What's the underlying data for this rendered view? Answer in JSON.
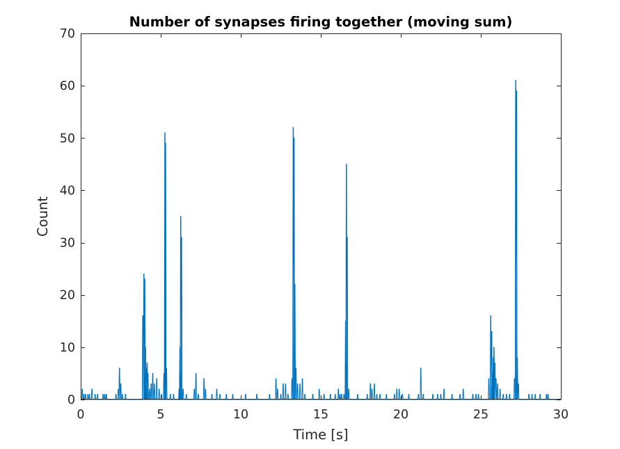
{
  "chart_data": {
    "type": "line",
    "title": "Number of synapses firing together (moving sum)",
    "xlabel": "Time [s]",
    "ylabel": "Count",
    "xlim": [
      0,
      30
    ],
    "ylim": [
      0,
      70
    ],
    "xticks": [
      0,
      5,
      10,
      15,
      20,
      25,
      30
    ],
    "yticks": [
      0,
      10,
      20,
      30,
      40,
      50,
      60,
      70
    ],
    "grid": false,
    "box": true,
    "line_color": "#0072BD",
    "series": [
      {
        "points": [
          [
            0.1,
            2
          ],
          [
            0.2,
            1
          ],
          [
            0.3,
            1
          ],
          [
            0.45,
            1
          ],
          [
            0.55,
            1
          ],
          [
            0.7,
            2
          ],
          [
            0.9,
            1
          ],
          [
            1.05,
            1
          ],
          [
            1.4,
            1
          ],
          [
            1.5,
            1
          ],
          [
            1.6,
            1
          ],
          [
            2.2,
            1
          ],
          [
            2.35,
            2
          ],
          [
            2.42,
            6
          ],
          [
            2.5,
            3
          ],
          [
            2.6,
            1
          ],
          [
            2.8,
            1
          ],
          [
            3.88,
            16
          ],
          [
            3.95,
            24
          ],
          [
            4.0,
            23
          ],
          [
            4.05,
            10
          ],
          [
            4.1,
            6
          ],
          [
            4.15,
            7
          ],
          [
            4.2,
            5
          ],
          [
            4.3,
            2
          ],
          [
            4.4,
            3
          ],
          [
            4.5,
            5
          ],
          [
            4.6,
            3
          ],
          [
            4.75,
            4
          ],
          [
            4.9,
            2
          ],
          [
            5.05,
            1
          ],
          [
            5.2,
            5
          ],
          [
            5.26,
            51
          ],
          [
            5.3,
            49
          ],
          [
            5.36,
            6
          ],
          [
            5.6,
            1
          ],
          [
            5.8,
            1
          ],
          [
            6.15,
            2
          ],
          [
            6.2,
            10
          ],
          [
            6.25,
            35
          ],
          [
            6.3,
            31
          ],
          [
            6.4,
            2
          ],
          [
            6.6,
            1
          ],
          [
            7.1,
            2
          ],
          [
            7.2,
            5
          ],
          [
            7.35,
            1
          ],
          [
            7.7,
            4
          ],
          [
            7.8,
            2
          ],
          [
            8.2,
            1
          ],
          [
            8.5,
            2
          ],
          [
            8.7,
            1
          ],
          [
            9.1,
            1
          ],
          [
            9.5,
            1
          ],
          [
            10.3,
            1
          ],
          [
            11.0,
            1
          ],
          [
            11.8,
            1
          ],
          [
            12.2,
            4
          ],
          [
            12.3,
            2
          ],
          [
            12.5,
            1
          ],
          [
            12.65,
            3
          ],
          [
            12.8,
            3
          ],
          [
            12.95,
            1
          ],
          [
            13.2,
            4
          ],
          [
            13.28,
            52
          ],
          [
            13.33,
            50
          ],
          [
            13.38,
            22
          ],
          [
            13.45,
            6
          ],
          [
            13.55,
            3
          ],
          [
            13.7,
            3
          ],
          [
            13.85,
            4
          ],
          [
            14.0,
            1
          ],
          [
            14.5,
            1
          ],
          [
            14.9,
            2
          ],
          [
            15.2,
            1
          ],
          [
            15.6,
            1
          ],
          [
            15.9,
            1
          ],
          [
            16.1,
            2
          ],
          [
            16.2,
            1
          ],
          [
            16.3,
            1
          ],
          [
            16.45,
            1
          ],
          [
            16.55,
            15
          ],
          [
            16.6,
            45
          ],
          [
            16.65,
            31
          ],
          [
            16.75,
            2
          ],
          [
            17.3,
            1
          ],
          [
            17.9,
            1
          ],
          [
            18.1,
            3
          ],
          [
            18.2,
            2
          ],
          [
            18.35,
            3
          ],
          [
            18.5,
            1
          ],
          [
            18.7,
            1
          ],
          [
            19.1,
            1
          ],
          [
            19.6,
            1
          ],
          [
            19.75,
            2
          ],
          [
            19.9,
            2
          ],
          [
            20.1,
            1
          ],
          [
            20.5,
            1
          ],
          [
            21.1,
            1
          ],
          [
            21.25,
            6
          ],
          [
            21.4,
            1
          ],
          [
            22.0,
            1
          ],
          [
            22.3,
            1
          ],
          [
            22.5,
            1
          ],
          [
            22.7,
            2
          ],
          [
            23.2,
            1
          ],
          [
            23.7,
            1
          ],
          [
            23.9,
            2
          ],
          [
            24.5,
            1
          ],
          [
            24.7,
            1
          ],
          [
            24.85,
            1
          ],
          [
            25.5,
            4
          ],
          [
            25.62,
            16
          ],
          [
            25.68,
            13
          ],
          [
            25.72,
            5
          ],
          [
            25.78,
            8
          ],
          [
            25.82,
            10
          ],
          [
            25.88,
            7
          ],
          [
            25.95,
            4
          ],
          [
            26.05,
            3
          ],
          [
            26.2,
            2
          ],
          [
            26.4,
            1
          ],
          [
            26.6,
            1
          ],
          [
            26.8,
            1
          ],
          [
            27.1,
            4
          ],
          [
            27.18,
            61
          ],
          [
            27.23,
            59
          ],
          [
            27.28,
            8
          ],
          [
            27.35,
            3
          ],
          [
            28.0,
            1
          ],
          [
            28.2,
            1
          ],
          [
            28.4,
            1
          ],
          [
            28.7,
            1
          ],
          [
            29.1,
            1
          ],
          [
            29.2,
            1
          ]
        ]
      }
    ]
  }
}
